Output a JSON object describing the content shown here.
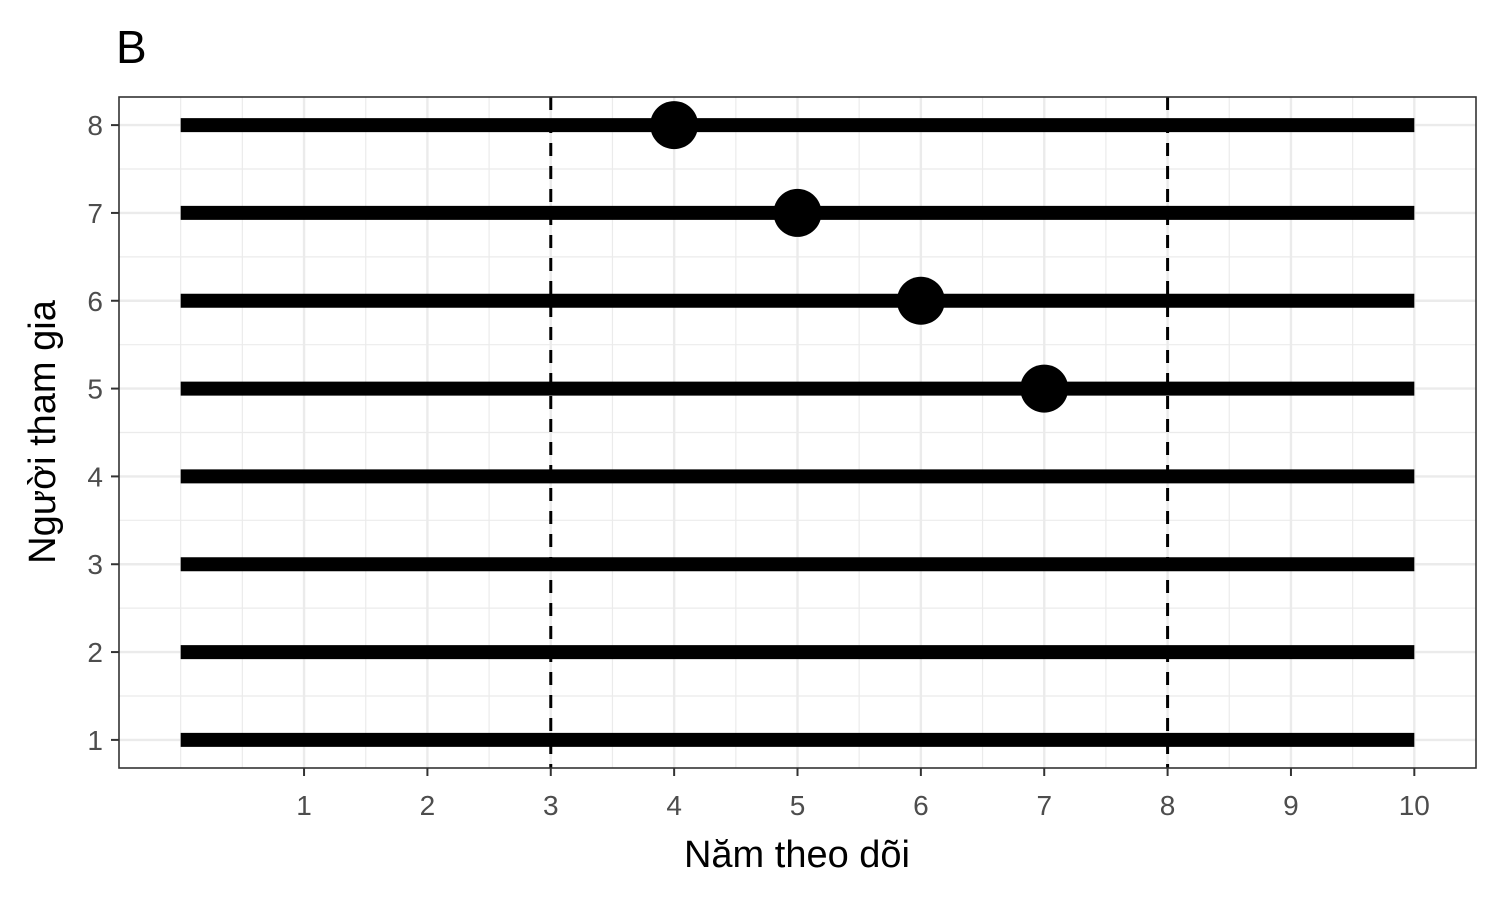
{
  "chart_data": {
    "type": "line",
    "panel_label": "B",
    "xlabel": "Năm theo dõi",
    "ylabel": "Người tham gia",
    "xlim": [
      -0.5,
      10.5
    ],
    "ylim": [
      0.68,
      8.32
    ],
    "x_ticks": [
      1,
      2,
      3,
      4,
      5,
      6,
      7,
      8,
      9,
      10
    ],
    "y_ticks": [
      1,
      2,
      3,
      4,
      5,
      6,
      7,
      8
    ],
    "x_minor_gridlines": [
      0,
      0.5,
      1.5,
      2.5,
      3.5,
      4.5,
      5.5,
      6.5,
      7.5,
      8.5,
      9.5
    ],
    "y_minor_gridlines": [
      1.5,
      2.5,
      3.5,
      4.5,
      5.5,
      6.5,
      7.5
    ],
    "grid": true,
    "reference_lines_x": [
      3,
      8
    ],
    "segments": [
      {
        "participant": 1,
        "start": 0,
        "end": 10
      },
      {
        "participant": 2,
        "start": 0,
        "end": 10
      },
      {
        "participant": 3,
        "start": 0,
        "end": 10
      },
      {
        "participant": 4,
        "start": 0,
        "end": 10
      },
      {
        "participant": 5,
        "start": 0,
        "end": 10
      },
      {
        "participant": 6,
        "start": 0,
        "end": 10
      },
      {
        "participant": 7,
        "start": 0,
        "end": 10
      },
      {
        "participant": 8,
        "start": 0,
        "end": 10
      }
    ],
    "events": [
      {
        "participant": 8,
        "x": 4
      },
      {
        "participant": 7,
        "x": 5
      },
      {
        "participant": 6,
        "x": 6
      },
      {
        "participant": 5,
        "x": 7
      }
    ],
    "colors": {
      "segment": "#000000",
      "event": "#000000",
      "reference_line": "#000000",
      "major_grid": "#ebebeb",
      "minor_grid": "#ebebeb",
      "panel_border": "#333333",
      "tick_text": "#4d4d4d"
    }
  }
}
